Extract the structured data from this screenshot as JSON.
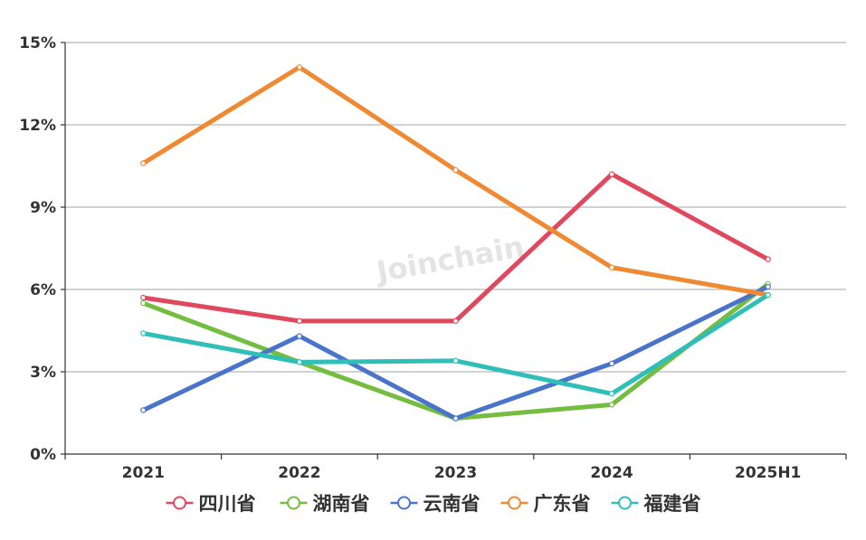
{
  "watermark": "Joinchain",
  "chart_data": {
    "type": "line",
    "categories": [
      "2021",
      "2022",
      "2023",
      "2024",
      "2025H1"
    ],
    "ylim": [
      0,
      15
    ],
    "yticks": [
      0,
      3,
      6,
      9,
      12,
      15
    ],
    "ytick_labels": [
      "0%",
      "3%",
      "6%",
      "9%",
      "12%",
      "15%"
    ],
    "grid": true,
    "legend_position": "bottom",
    "series": [
      {
        "name": "四川省",
        "color": "#e0485e",
        "values": [
          5.7,
          4.85,
          4.85,
          10.2,
          7.1
        ]
      },
      {
        "name": "湖南省",
        "color": "#74bd40",
        "values": [
          5.5,
          3.35,
          1.3,
          1.8,
          6.2
        ]
      },
      {
        "name": "云南省",
        "color": "#4a74cc",
        "values": [
          1.6,
          4.3,
          1.3,
          3.3,
          6.1
        ]
      },
      {
        "name": "广东省",
        "color": "#ef8932",
        "values": [
          10.6,
          14.1,
          10.35,
          6.8,
          5.8
        ]
      },
      {
        "name": "福建省",
        "color": "#2fbfb8",
        "values": [
          4.4,
          3.35,
          3.4,
          2.2,
          5.8
        ]
      }
    ]
  }
}
